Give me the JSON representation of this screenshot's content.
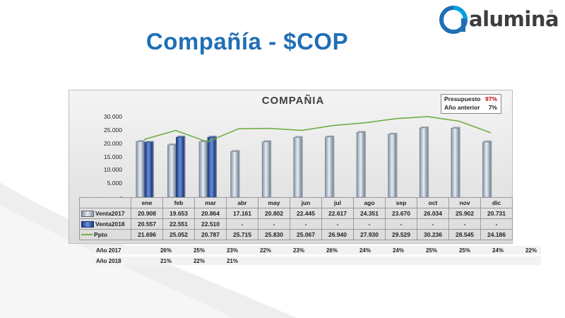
{
  "slide": {
    "title": "Compañía - $COP"
  },
  "logo": {
    "text": "alumina",
    "mark": "®",
    "icon": "alumina-swirl-logo",
    "colors": [
      "#1f6fb5",
      "#00a3e0",
      "#3d3d3d"
    ]
  },
  "summary": [
    {
      "label": "Presupuesto",
      "value": "97%",
      "color": "#c00000"
    },
    {
      "label": "Año anterior",
      "value": "7%",
      "color": "#222222"
    }
  ],
  "chart_data": {
    "type": "bar",
    "title": "COMPAÑIA",
    "categories": [
      "ene",
      "feb",
      "mar",
      "abr",
      "may",
      "jun",
      "jul",
      "ago",
      "sep",
      "oct",
      "nov",
      "dic"
    ],
    "ylim": [
      0,
      30000
    ],
    "yticks": [
      "-",
      "5.000",
      "10.000",
      "15.000",
      "20.000",
      "25.000",
      "30.000"
    ],
    "grid": false,
    "legend": "data-table",
    "series": [
      {
        "name": "Venta2017",
        "kind": "bar",
        "color": "#9aa8b8",
        "values": [
          20908,
          19653,
          20864,
          17161,
          20802,
          22445,
          22617,
          24351,
          23670,
          26034,
          25902,
          20731
        ],
        "labels": [
          "20.908",
          "19.653",
          "20.864",
          "17.161",
          "20.802",
          "22.445",
          "22.617",
          "24.351",
          "23.670",
          "26.034",
          "25.902",
          "20.731"
        ]
      },
      {
        "name": "Venta2018",
        "kind": "bar",
        "color": "#2f5bb7",
        "values": [
          20557,
          22551,
          22510,
          null,
          null,
          null,
          null,
          null,
          null,
          null,
          null,
          null
        ],
        "labels": [
          "20.557",
          "22.551",
          "22.510",
          "-",
          "-",
          "-",
          "-",
          "-",
          "-",
          "-",
          "-",
          "-"
        ]
      },
      {
        "name": "Ppto",
        "kind": "line",
        "color": "#70ad47",
        "values": [
          21696,
          25052,
          20787,
          25715,
          25830,
          25067,
          26940,
          27930,
          29529,
          30236,
          28545,
          24186
        ],
        "labels": [
          "21.696",
          "25.052",
          "20.787",
          "25.715",
          "25.830",
          "25.067",
          "26.940",
          "27.930",
          "29.529",
          "30.236",
          "28.545",
          "24.186"
        ]
      }
    ]
  },
  "growth": {
    "rows": [
      {
        "label": "Año 2017",
        "values": [
          "26%",
          "25%",
          "23%",
          "22%",
          "23%",
          "26%",
          "24%",
          "24%",
          "25%",
          "25%",
          "24%",
          "22%"
        ]
      },
      {
        "label": "Año 2018",
        "values": [
          "21%",
          "22%",
          "21%",
          "",
          "",
          "",
          "",
          "",
          "",
          "",
          "",
          ""
        ]
      }
    ]
  }
}
